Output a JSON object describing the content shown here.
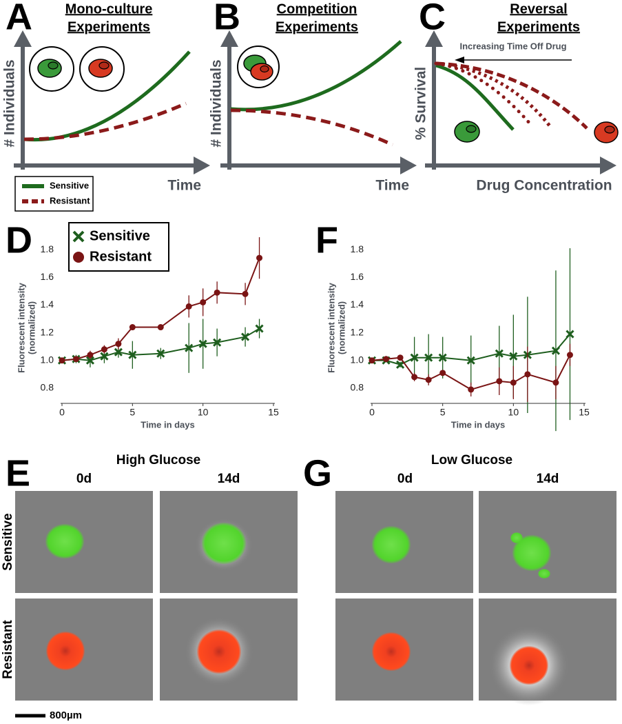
{
  "panels": [
    {
      "letter": "A",
      "title": [
        "Mono-culture",
        "Experiments"
      ],
      "xlabel": "Time",
      "ylabel": "# Individuals",
      "legend": [
        "Sensitive",
        "Resistant"
      ]
    },
    {
      "letter": "B",
      "title": [
        "Competition",
        "Experiments"
      ],
      "xlabel": "Time",
      "ylabel": "# Individuals"
    },
    {
      "letter": "C",
      "title": [
        "Reversal",
        "Experiments"
      ],
      "xlabel": "Drug Concentration",
      "ylabel": "% Survival",
      "annotation": "Increasing Time Off Drug"
    }
  ],
  "chart_data": [
    {
      "type": "line",
      "panel": "D",
      "xlabel": "Time in days",
      "ylabel": [
        "Fluorescent intensity",
        "(normalized)"
      ],
      "x": [
        0,
        1,
        2,
        3,
        4,
        5,
        7,
        9,
        10,
        11,
        13,
        14
      ],
      "xlim": [
        0,
        15
      ],
      "xticks": [
        0,
        5,
        10,
        15
      ],
      "ylim": [
        0.69,
        1.88
      ],
      "yticks": [
        0.8,
        {
          "value": 1,
          "label": "1.0"
        },
        1.2,
        1.4,
        1.6,
        1.8
      ],
      "grid": false,
      "legend": "upper left",
      "series": [
        {
          "name": "Sensitive",
          "color": "#1e5e1e",
          "marker": "x",
          "values": [
            1.0,
            1.01,
            1.0,
            1.03,
            1.06,
            1.04,
            1.05,
            1.09,
            1.12,
            1.13,
            1.17,
            1.23
          ],
          "errors": [
            0.01,
            0.03,
            0.05,
            0.05,
            0.04,
            0.1,
            0.04,
            0.18,
            0.18,
            0.1,
            0.07,
            0.07
          ]
        },
        {
          "name": "Resistant",
          "color": "#7a1414",
          "marker": "circle",
          "values": [
            1.0,
            1.01,
            1.04,
            1.08,
            1.12,
            1.24,
            1.24,
            1.39,
            1.42,
            1.49,
            1.48,
            1.74
          ],
          "errors": [
            0.01,
            0.02,
            0.03,
            0.03,
            0.04,
            0.01,
            0.02,
            0.08,
            0.1,
            0.08,
            0.08,
            0.15
          ]
        }
      ]
    },
    {
      "type": "line",
      "panel": "F",
      "xlabel": "Time in days",
      "ylabel": [
        "Fluorescent intensity",
        "(normalized)"
      ],
      "x": [
        0,
        1,
        2,
        3,
        4,
        5,
        7,
        9,
        10,
        11,
        13,
        14
      ],
      "xlim": [
        0,
        15
      ],
      "xticks": [
        0,
        5,
        10,
        15
      ],
      "ylim": [
        0.69,
        1.88
      ],
      "yticks": [
        0.8,
        {
          "value": 1,
          "label": "1.0"
        },
        1.2,
        1.4,
        1.6,
        1.8
      ],
      "grid": false,
      "series": [
        {
          "color": "#1e5e1e",
          "marker": "x",
          "values": [
            1.0,
            1.0,
            0.97,
            1.02,
            1.02,
            1.02,
            1.0,
            1.05,
            1.03,
            1.04,
            1.07,
            1.19
          ],
          "errors": [
            0.01,
            0.01,
            0.02,
            0.15,
            0.17,
            0.15,
            0.18,
            0.2,
            0.3,
            0.42,
            0.58,
            0.62
          ]
        },
        {
          "color": "#7a1414",
          "marker": "circle",
          "values": [
            1.0,
            1.01,
            1.02,
            0.88,
            0.86,
            0.91,
            0.79,
            0.85,
            0.84,
            0.9,
            0.84,
            1.04
          ],
          "errors": [
            0.01,
            0.01,
            0.02,
            0.03,
            0.04,
            0.02,
            0.05,
            0.1,
            0.12,
            0.2,
            0.12,
            0.08
          ]
        }
      ]
    }
  ],
  "images": [
    {
      "letter": "E",
      "title": "High Glucose",
      "columns": [
        "0d",
        "14d"
      ],
      "rows": [
        "Sensitive",
        "Resistant"
      ]
    },
    {
      "letter": "G",
      "title": "Low Glucose",
      "columns": [
        "0d",
        "14d"
      ]
    }
  ],
  "scale_bar": "800µm"
}
